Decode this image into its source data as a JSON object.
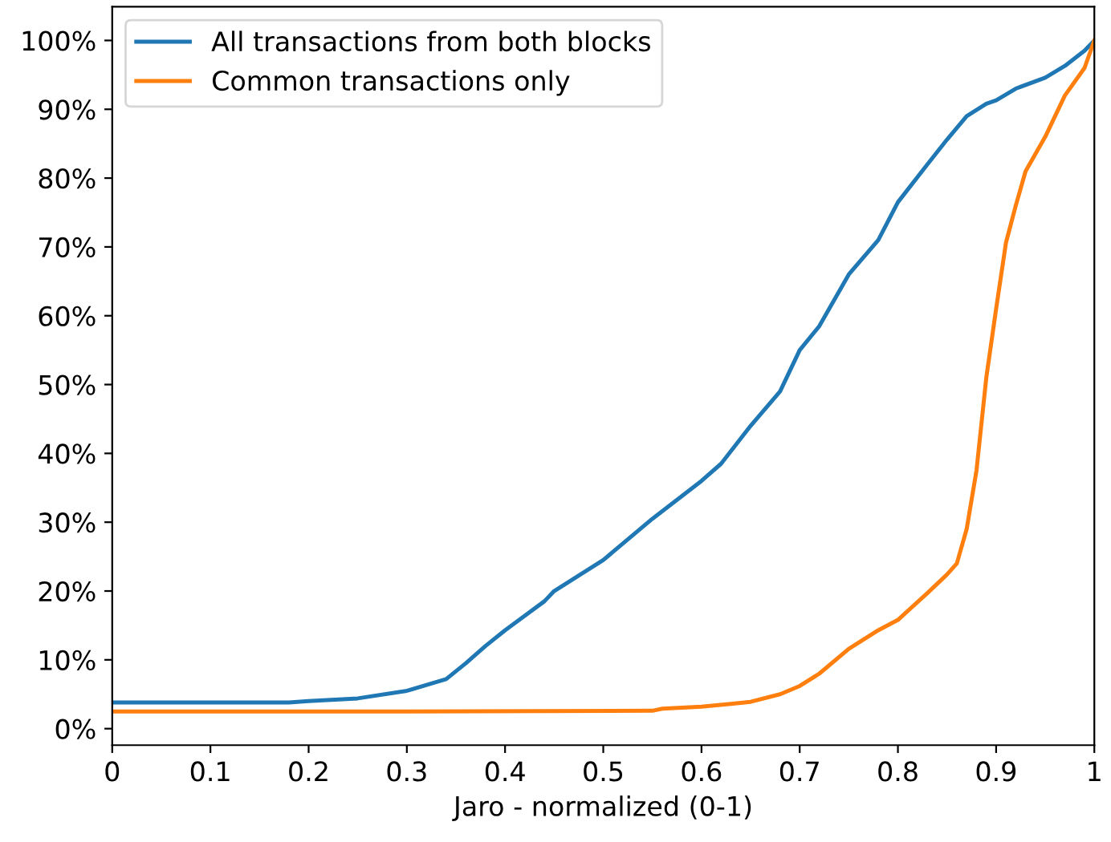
{
  "chart_data": {
    "type": "line",
    "xlabel": "Jaro - normalized (0-1)",
    "xlim": [
      0,
      1
    ],
    "xticks": [
      0,
      0.1,
      0.2,
      0.3,
      0.4,
      0.5,
      0.6,
      0.7,
      0.8,
      0.9,
      {
        "value": 1,
        "label": "1"
      }
    ],
    "ylim": [
      -2.4,
      104.9
    ],
    "yticks": [
      {
        "value": 0,
        "label": "0%"
      },
      {
        "value": 10,
        "label": "10%"
      },
      {
        "value": 20,
        "label": "20%"
      },
      {
        "value": 30,
        "label": "30%"
      },
      {
        "value": 40,
        "label": "40%"
      },
      {
        "value": 50,
        "label": "50%"
      },
      {
        "value": 60,
        "label": "60%"
      },
      {
        "value": 70,
        "label": "70%"
      },
      {
        "value": 80,
        "label": "80%"
      },
      {
        "value": 90,
        "label": "90%"
      },
      {
        "value": 100,
        "label": "100%"
      }
    ],
    "grid": false,
    "legend": "top left",
    "marker": "none",
    "line_style": "solid",
    "series": [
      {
        "name": "All transactions from both blocks",
        "color": "#1f77b4",
        "x": [
          0,
          0.1,
          0.18,
          0.2,
          0.25,
          0.3,
          0.34,
          0.36,
          0.38,
          0.4,
          0.44,
          0.45,
          0.5,
          0.55,
          0.6,
          0.62,
          0.65,
          0.68,
          0.7,
          0.72,
          0.75,
          0.78,
          0.8,
          0.83,
          0.85,
          0.87,
          0.89,
          0.9,
          0.92,
          0.95,
          0.97,
          0.99,
          1.0
        ],
        "values": [
          3.8,
          3.8,
          3.8,
          4.0,
          4.4,
          5.5,
          7.2,
          9.5,
          12,
          14.3,
          18.5,
          20,
          24.5,
          30.5,
          36,
          38.5,
          44,
          49,
          55,
          58.5,
          66,
          71,
          76.5,
          82,
          85.6,
          89,
          90.8,
          91.3,
          93,
          94.6,
          96.3,
          98.5,
          100
        ]
      },
      {
        "name": "Common transactions only",
        "color": "#ff7f0e",
        "x": [
          0,
          0.3,
          0.55,
          0.56,
          0.6,
          0.63,
          0.65,
          0.68,
          0.7,
          0.72,
          0.75,
          0.78,
          0.8,
          0.83,
          0.85,
          0.86,
          0.87,
          0.88,
          0.89,
          0.9,
          0.91,
          0.92,
          0.93,
          0.95,
          0.97,
          0.99,
          1.0
        ],
        "values": [
          2.5,
          2.5,
          2.6,
          2.9,
          3.2,
          3.6,
          3.9,
          5.0,
          6.2,
          8.0,
          11.6,
          14.3,
          15.8,
          19.7,
          22.4,
          24,
          29,
          37.5,
          51,
          61,
          70.6,
          76,
          81,
          86,
          92,
          96,
          100
        ]
      }
    ]
  }
}
